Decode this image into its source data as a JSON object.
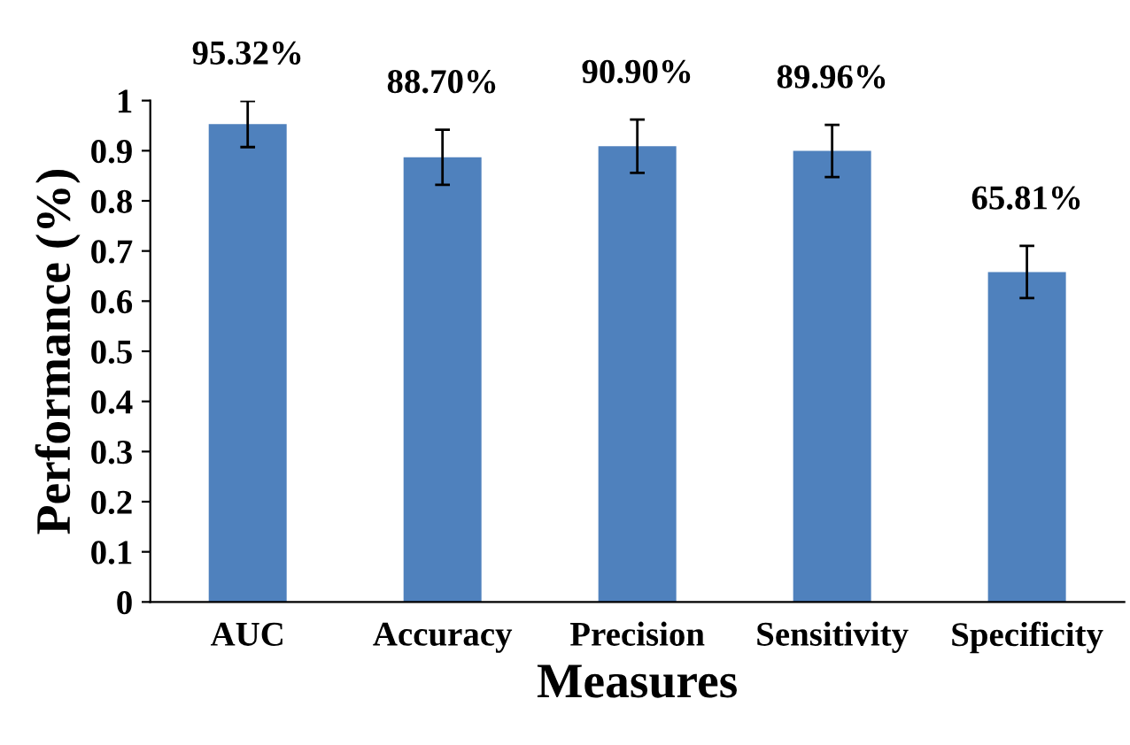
{
  "chart_data": {
    "type": "bar",
    "xlabel": "Measures",
    "ylabel": "Performance (%)",
    "categories": [
      "AUC",
      "Accuracy",
      "Precision",
      "Sensitivity",
      "Specificity"
    ],
    "values": [
      0.9532,
      0.887,
      0.909,
      0.8996,
      0.6581
    ],
    "errors": [
      0.046,
      0.055,
      0.053,
      0.052,
      0.052
    ],
    "value_labels": [
      "95.32%",
      "88.70%",
      "90.90%",
      "89.96%",
      "65.81%"
    ],
    "color": "#4f81bd",
    "ylim": [
      0,
      1
    ],
    "yticks": [
      0,
      0.1,
      0.2,
      0.3,
      0.4,
      0.5,
      0.6,
      0.7,
      0.8,
      0.9,
      1
    ],
    "grid": false
  }
}
